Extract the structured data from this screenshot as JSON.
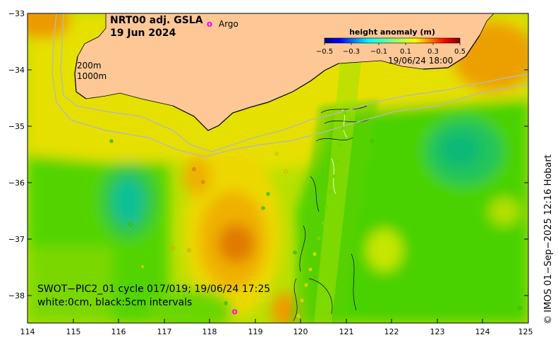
{
  "title": "NRT00 adj. GSLA",
  "date": "19 Jun 2024",
  "argo": {
    "symbol": "o",
    "label": "Argo",
    "color": "#ff00ff"
  },
  "isobaths": [
    "200m",
    "1000m"
  ],
  "colorbar": {
    "title": "height anomaly (m)",
    "ticks": [
      "−0.5",
      "−0.3",
      "−0.1",
      "0.1",
      "0.3",
      "0.5"
    ],
    "colors": [
      "#00007f",
      "#0000ff",
      "#007fff",
      "#00ffff",
      "#00ff7f",
      "#7fff00",
      "#ffff00",
      "#ff7f00",
      "#ff0000",
      "#7f0000"
    ]
  },
  "swath_timestamp": "19/06/24 18:00",
  "swot_note": "SWOT−PIC2_01 cycle 017/019; 19/06/24 17:25",
  "contour_note": "white:0cm, black:5cm intervals",
  "credit": "©  IMOS 01−Sep−2025 12:16 Hobart",
  "y_ticks": [
    "−33",
    "−34",
    "−35",
    "−36",
    "−37",
    "−38"
  ],
  "x_ticks": [
    "114",
    "115",
    "116",
    "117",
    "118",
    "119",
    "120",
    "121",
    "122",
    "123",
    "124",
    "125"
  ],
  "argo_floats": [
    {
      "lon": 118.55,
      "lat": -38.3
    }
  ],
  "colors": {
    "land": "#fdc896",
    "isobath": "#b8b8b8"
  }
}
